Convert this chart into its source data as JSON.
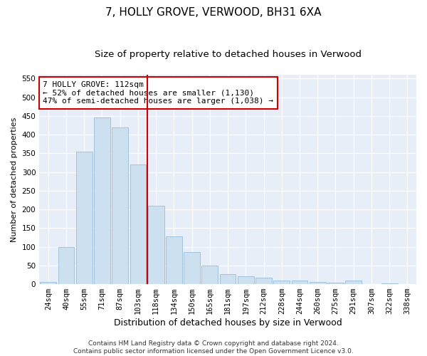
{
  "title": "7, HOLLY GROVE, VERWOOD, BH31 6XA",
  "subtitle": "Size of property relative to detached houses in Verwood",
  "xlabel": "Distribution of detached houses by size in Verwood",
  "ylabel": "Number of detached properties",
  "categories": [
    "24sqm",
    "40sqm",
    "55sqm",
    "71sqm",
    "87sqm",
    "103sqm",
    "118sqm",
    "134sqm",
    "150sqm",
    "165sqm",
    "181sqm",
    "197sqm",
    "212sqm",
    "228sqm",
    "244sqm",
    "260sqm",
    "275sqm",
    "291sqm",
    "307sqm",
    "322sqm",
    "338sqm"
  ],
  "values": [
    5,
    100,
    355,
    445,
    420,
    320,
    210,
    128,
    85,
    50,
    27,
    22,
    17,
    10,
    10,
    5,
    4,
    10,
    1,
    3,
    1
  ],
  "bar_color": "#cce0f0",
  "bar_edge_color": "#8ab4d4",
  "vline_index": 6,
  "vline_color": "#cc0000",
  "annotation_text": "7 HOLLY GROVE: 112sqm\n← 52% of detached houses are smaller (1,130)\n47% of semi-detached houses are larger (1,038) →",
  "annotation_box_color": "#ffffff",
  "annotation_box_edge": "#cc0000",
  "ylim": [
    0,
    560
  ],
  "yticks": [
    0,
    50,
    100,
    150,
    200,
    250,
    300,
    350,
    400,
    450,
    500,
    550
  ],
  "background_color": "#e8eef8",
  "footer_text": "Contains HM Land Registry data © Crown copyright and database right 2024.\nContains public sector information licensed under the Open Government Licence v3.0.",
  "title_fontsize": 11,
  "subtitle_fontsize": 9.5,
  "xlabel_fontsize": 9,
  "ylabel_fontsize": 8,
  "tick_fontsize": 7.5,
  "annotation_fontsize": 8,
  "footer_fontsize": 6.5
}
